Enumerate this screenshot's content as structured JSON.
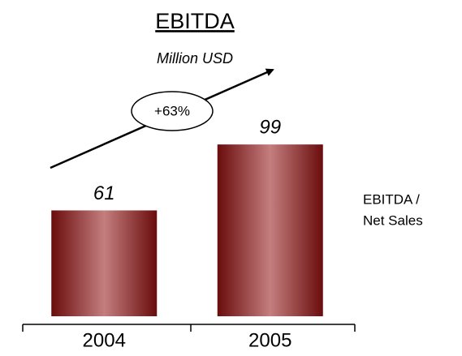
{
  "chart_data": {
    "type": "bar",
    "title": "EBITDA",
    "subtitle": "Million USD",
    "categories": [
      "2004",
      "2005"
    ],
    "values": [
      61,
      99
    ],
    "color": "#7a1414",
    "annotation": "+63%",
    "side_note": [
      "EBITDA /",
      "Net Sales"
    ]
  }
}
